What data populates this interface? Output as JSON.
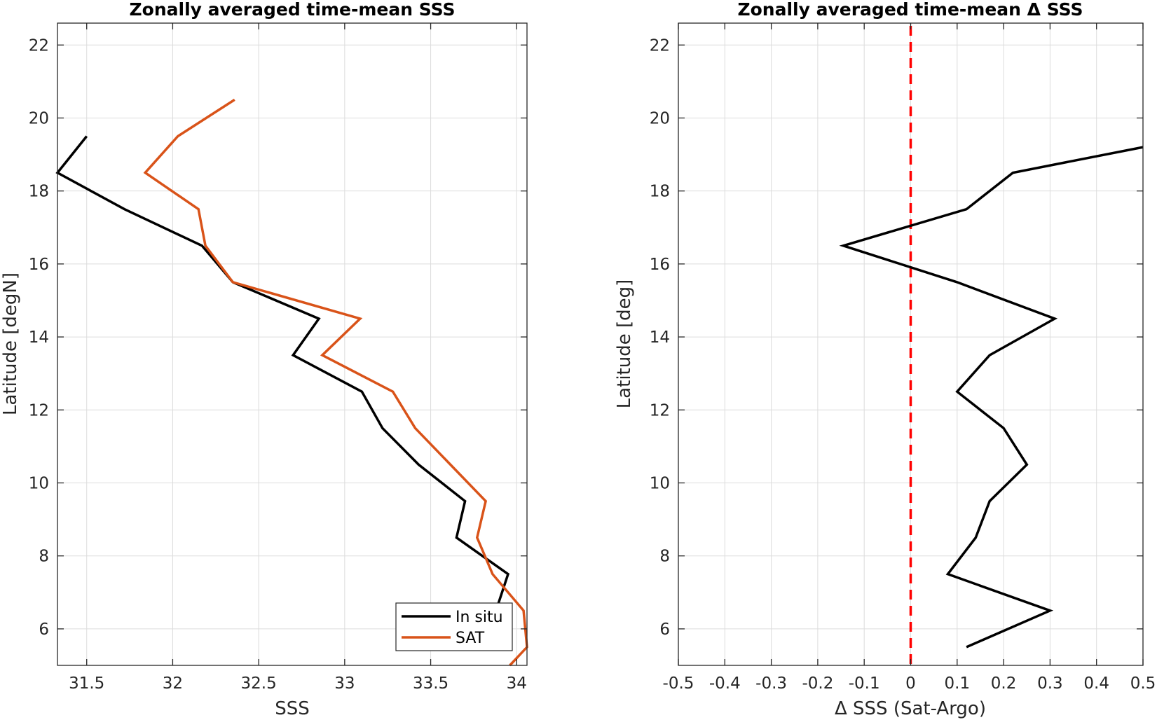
{
  "chart_data": [
    {
      "type": "line",
      "title": "Zonally averaged time-mean SSS",
      "xlabel": "SSS",
      "ylabel": "Latitude [degN]",
      "xlim": [
        31.33,
        34.06
      ],
      "ylim": [
        5,
        22.6
      ],
      "xticks": [
        "31.5",
        "32",
        "32.5",
        "33",
        "33.5",
        "34"
      ],
      "yticks": [
        "6",
        "8",
        "10",
        "12",
        "14",
        "16",
        "18",
        "20",
        "22"
      ],
      "grid": true,
      "legend_position": "bottom-right",
      "series": [
        {
          "name": "In situ",
          "color": "#000000",
          "x": [
            33.96,
            33.88,
            33.95,
            33.65,
            33.7,
            33.43,
            33.22,
            33.1,
            32.7,
            32.85,
            32.35,
            32.17,
            31.72,
            31.33,
            31.5
          ],
          "y": [
            6.0,
            6.5,
            7.5,
            8.5,
            9.5,
            10.5,
            11.5,
            12.5,
            13.5,
            14.5,
            15.5,
            16.5,
            17.5,
            18.5,
            19.5
          ]
        },
        {
          "name": "SAT",
          "color": "#d95319",
          "x": [
            33.96,
            34.06,
            34.04,
            33.86,
            33.77,
            33.82,
            33.41,
            33.28,
            32.87,
            33.09,
            32.35,
            32.19,
            32.15,
            31.84,
            32.03,
            32.36
          ],
          "y": [
            5.0,
            5.5,
            6.5,
            7.5,
            8.5,
            9.5,
            11.5,
            12.5,
            13.5,
            14.5,
            15.5,
            16.5,
            17.5,
            18.5,
            19.5,
            20.5
          ]
        }
      ]
    },
    {
      "type": "line",
      "title": "Zonally averaged time-mean Δ SSS",
      "xlabel": "Δ SSS (Sat-Argo)",
      "ylabel": "Latitude [deg]",
      "xlim": [
        -0.5,
        0.5
      ],
      "ylim": [
        5,
        22.6
      ],
      "xticks": [
        "-0.5",
        "-0.4",
        "-0.3",
        "-0.2",
        "-0.1",
        "0",
        "0.1",
        "0.2",
        "0.3",
        "0.4",
        "0.5"
      ],
      "yticks": [
        "6",
        "8",
        "10",
        "12",
        "14",
        "16",
        "18",
        "20",
        "22"
      ],
      "grid": true,
      "reference_line": {
        "x": 0,
        "color": "#ff0000",
        "style": "dashed"
      },
      "series": [
        {
          "color": "#000000",
          "x": [
            0.12,
            0.3,
            0.08,
            0.14,
            0.17,
            0.25,
            0.2,
            0.1,
            0.17,
            0.31,
            0.1,
            -0.145,
            0.12,
            0.22,
            0.5
          ],
          "y": [
            5.5,
            6.5,
            7.5,
            8.5,
            9.5,
            10.5,
            11.5,
            12.5,
            13.5,
            14.5,
            15.5,
            16.5,
            17.5,
            18.5,
            19.2
          ]
        }
      ]
    }
  ]
}
